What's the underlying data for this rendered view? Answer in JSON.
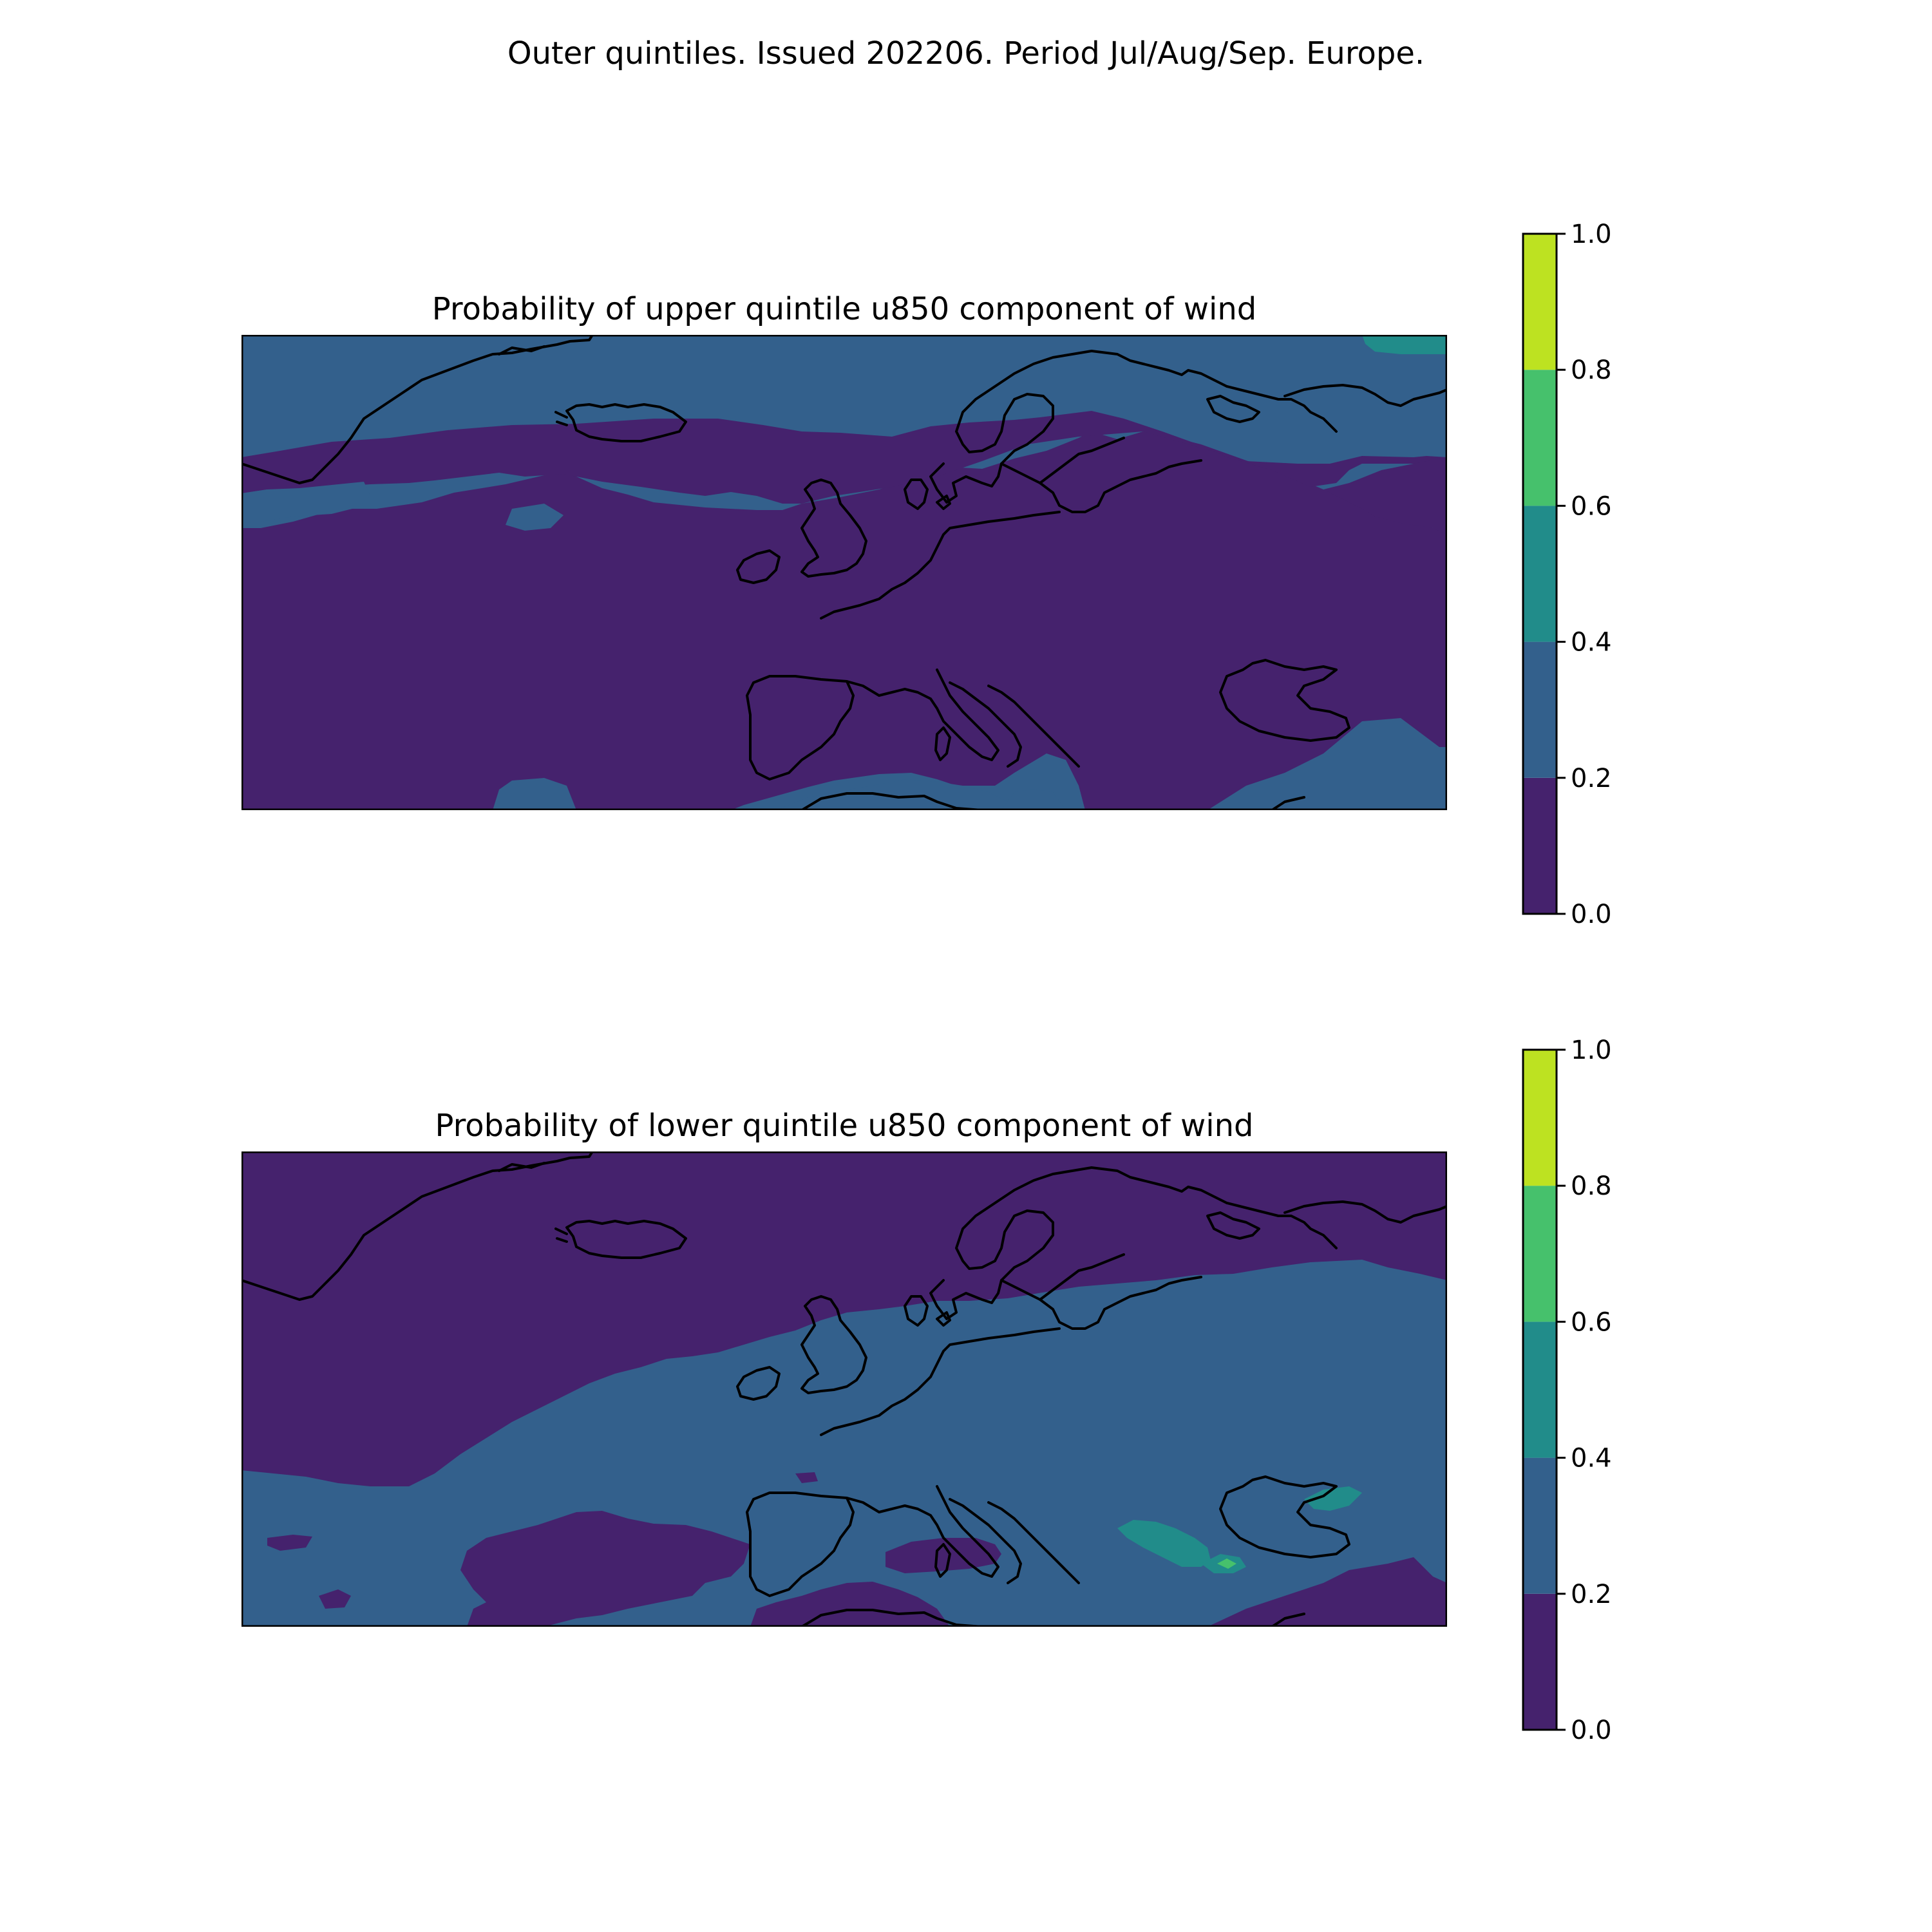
{
  "suptitle": "Outer quintiles. Issued 202206. Period Jul/Aug/Sep. Europe.",
  "colormap": {
    "levels": [
      0.0,
      0.2,
      0.4,
      0.6,
      0.8,
      1.0
    ],
    "tick_labels": [
      "0.0",
      "0.2",
      "0.4",
      "0.6",
      "0.8",
      "1.0"
    ],
    "colors": [
      "#45226d",
      "#33608c",
      "#218c8a",
      "#46c16c",
      "#bde221"
    ]
  },
  "coastline_color": "#000000",
  "panels": [
    {
      "title": "Probability of upper quintile u850 component of wind"
    },
    {
      "title": "Probability of lower quintile u850 component of wind"
    }
  ]
}
